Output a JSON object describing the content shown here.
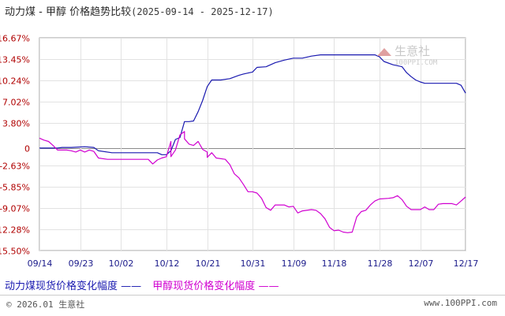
{
  "chart_data": {
    "type": "line",
    "title": "动力煤 - 甲醇 价格趋势比较",
    "date_range": "(2025-09-14 - 2025-12-17)",
    "x_ticks": [
      "09/14",
      "09/23",
      "10/02",
      "10/12",
      "10/21",
      "10/31",
      "11/09",
      "11/18",
      "11/28",
      "12/07",
      "12/17"
    ],
    "y_ticks": [
      "16.67%",
      "13.45%",
      "10.24%",
      "7.02%",
      "3.80%",
      "0",
      "-2.63%",
      "-5.85%",
      "-9.07%",
      "-12.28%",
      "-15.50%"
    ],
    "y_tick_values": [
      16.67,
      13.45,
      10.24,
      7.02,
      3.8,
      0,
      -2.63,
      -5.85,
      -9.07,
      -12.28,
      -15.5
    ],
    "ylim": [
      -15.5,
      16.67
    ],
    "series": [
      {
        "name": "动力煤现货价格变化幅度",
        "color": "#1a1ab0",
        "points": [
          [
            "09/14",
            0
          ],
          [
            "09/16",
            0
          ],
          [
            "09/18",
            0
          ],
          [
            "09/19",
            0.1
          ],
          [
            "09/21",
            0.1
          ],
          [
            "09/24",
            0.2
          ],
          [
            "09/26",
            0.1
          ],
          [
            "09/27",
            -0.4
          ],
          [
            "09/30",
            -0.7
          ],
          [
            "10/03",
            -0.7
          ],
          [
            "10/06",
            -0.7
          ],
          [
            "10/08",
            -0.7
          ],
          [
            "10/10",
            -0.7
          ],
          [
            "10/11",
            -1.0
          ],
          [
            "10/12",
            -1.0
          ],
          [
            "10/13",
            -0.4
          ],
          [
            "10/14",
            1.3
          ],
          [
            "10/15",
            1.6
          ],
          [
            "10/16",
            4.0
          ],
          [
            "10/17",
            4.0
          ],
          [
            "10/18",
            4.1
          ],
          [
            "10/19",
            5.5
          ],
          [
            "10/20",
            7.2
          ],
          [
            "10/21",
            9.3
          ],
          [
            "10/22",
            10.3
          ],
          [
            "10/24",
            10.3
          ],
          [
            "10/26",
            10.5
          ],
          [
            "10/28",
            11.0
          ],
          [
            "10/29",
            11.2
          ],
          [
            "10/31",
            11.5
          ],
          [
            "11/01",
            12.2
          ],
          [
            "11/03",
            12.3
          ],
          [
            "11/05",
            12.9
          ],
          [
            "11/07",
            13.3
          ],
          [
            "11/09",
            13.6
          ],
          [
            "11/11",
            13.6
          ],
          [
            "11/13",
            13.9
          ],
          [
            "11/15",
            14.1
          ],
          [
            "11/18",
            14.1
          ],
          [
            "11/23",
            14.1
          ],
          [
            "11/27",
            14.1
          ],
          [
            "11/28",
            13.8
          ],
          [
            "11/29",
            13.1
          ],
          [
            "12/01",
            12.6
          ],
          [
            "12/03",
            12.3
          ],
          [
            "12/04",
            11.4
          ],
          [
            "12/05",
            10.8
          ],
          [
            "12/06",
            10.3
          ],
          [
            "12/07",
            10.0
          ],
          [
            "12/08",
            9.8
          ],
          [
            "12/11",
            9.8
          ],
          [
            "12/15",
            9.8
          ],
          [
            "12/16",
            9.5
          ],
          [
            "12/17",
            8.3
          ]
        ]
      },
      {
        "name": "甲醇现货价格变化幅度",
        "color": "#d000d0",
        "points": [
          [
            "09/14",
            1.5
          ],
          [
            "09/15",
            1.2
          ],
          [
            "09/16",
            1.0
          ],
          [
            "09/17",
            0.4
          ],
          [
            "09/18",
            -0.3
          ],
          [
            "09/20",
            -0.3
          ],
          [
            "09/21",
            -0.4
          ],
          [
            "09/22",
            -0.6
          ],
          [
            "09/23",
            -0.3
          ],
          [
            "09/24",
            -0.6
          ],
          [
            "09/25",
            -0.3
          ],
          [
            "09/26",
            -0.5
          ],
          [
            "09/27",
            -1.5
          ],
          [
            "09/29",
            -1.7
          ],
          [
            "10/01",
            -1.7
          ],
          [
            "10/04",
            -1.7
          ],
          [
            "10/06",
            -1.7
          ],
          [
            "10/08",
            -1.7
          ],
          [
            "10/09",
            -2.4
          ],
          [
            "10/10",
            -1.8
          ],
          [
            "10/11",
            -1.5
          ],
          [
            "10/12",
            -1.3
          ],
          [
            "10/13",
            1.0
          ],
          [
            "10/13",
            -1.3
          ],
          [
            "10/14",
            -0.3
          ],
          [
            "10/15",
            2.0
          ],
          [
            "10/16",
            2.5
          ],
          [
            "10/16",
            1.4
          ],
          [
            "10/17",
            0.6
          ],
          [
            "10/18",
            0.4
          ],
          [
            "10/19",
            1.0
          ],
          [
            "10/20",
            -0.2
          ],
          [
            "10/21",
            -0.6
          ],
          [
            "10/21",
            -1.4
          ],
          [
            "10/22",
            -0.7
          ],
          [
            "10/23",
            -1.5
          ],
          [
            "10/25",
            -1.7
          ],
          [
            "10/26",
            -2.5
          ],
          [
            "10/27",
            -3.9
          ],
          [
            "10/28",
            -4.5
          ],
          [
            "10/29",
            -5.5
          ],
          [
            "10/30",
            -6.6
          ],
          [
            "10/31",
            -6.6
          ],
          [
            "11/01",
            -6.8
          ],
          [
            "11/02",
            -7.6
          ],
          [
            "11/03",
            -9.0
          ],
          [
            "11/04",
            -9.4
          ],
          [
            "11/05",
            -8.6
          ],
          [
            "11/07",
            -8.6
          ],
          [
            "11/08",
            -8.9
          ],
          [
            "11/09",
            -8.8
          ],
          [
            "11/10",
            -9.8
          ],
          [
            "11/11",
            -9.5
          ],
          [
            "11/13",
            -9.3
          ],
          [
            "11/14",
            -9.4
          ],
          [
            "11/15",
            -9.9
          ],
          [
            "11/16",
            -10.7
          ],
          [
            "11/17",
            -12.0
          ],
          [
            "11/18",
            -12.5
          ],
          [
            "11/19",
            -12.4
          ],
          [
            "11/20",
            -12.7
          ],
          [
            "11/21",
            -12.8
          ],
          [
            "11/22",
            -12.7
          ],
          [
            "11/23",
            -10.4
          ],
          [
            "11/24",
            -9.6
          ],
          [
            "11/25",
            -9.4
          ],
          [
            "11/26",
            -8.6
          ],
          [
            "11/27",
            -8.0
          ],
          [
            "11/28",
            -7.7
          ],
          [
            "11/30",
            -7.6
          ],
          [
            "12/01",
            -7.5
          ],
          [
            "12/02",
            -7.2
          ],
          [
            "12/03",
            -7.8
          ],
          [
            "12/04",
            -8.8
          ],
          [
            "12/05",
            -9.3
          ],
          [
            "12/07",
            -9.3
          ],
          [
            "12/08",
            -8.9
          ],
          [
            "12/09",
            -9.3
          ],
          [
            "12/10",
            -9.3
          ],
          [
            "12/11",
            -8.5
          ],
          [
            "12/12",
            -8.4
          ],
          [
            "12/14",
            -8.4
          ],
          [
            "12/15",
            -8.6
          ],
          [
            "12/16",
            -8.0
          ],
          [
            "12/17",
            -7.4
          ]
        ]
      }
    ],
    "grid": true,
    "legend": "bottom"
  },
  "legend": {
    "coal_label": "动力煤现货价格变化幅度",
    "coal_dash": "——",
    "methanol_label": "甲醇现货价格变化幅度",
    "methanol_dash": "——"
  },
  "watermark": {
    "brand": "生意社",
    "url": "100PPI.COM"
  },
  "footer": {
    "copyright": "© 2026.01 生意社",
    "site": "www.100PPI.com"
  }
}
